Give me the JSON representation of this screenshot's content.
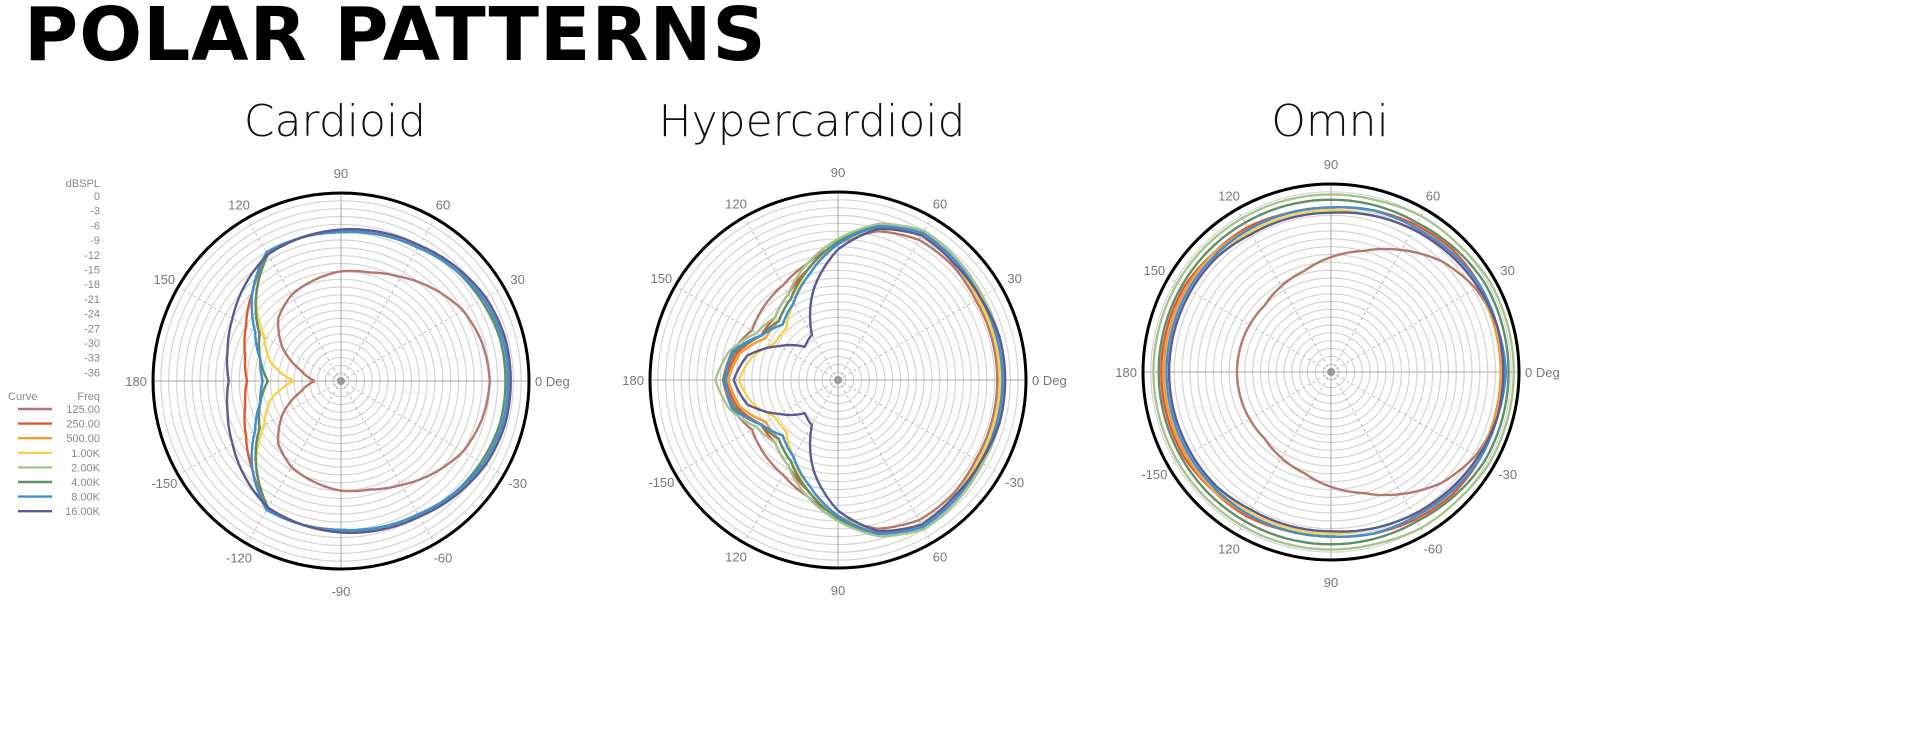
{
  "title": "POLAR PATTERNS",
  "chart_data": [
    {
      "type": "polar-line",
      "title": "Cardioid",
      "radial_unit": "dBSPL",
      "rlim": [
        -36,
        0
      ],
      "angles_deg": [
        0,
        15,
        30,
        45,
        60,
        75,
        90,
        105,
        120,
        135,
        150,
        165,
        180
      ],
      "symmetric": true,
      "angle_labels": [
        {
          "angle": 90,
          "text": "90"
        },
        {
          "angle": 120,
          "text": "120"
        },
        {
          "angle": 60,
          "text": "60"
        },
        {
          "angle": 150,
          "text": "150"
        },
        {
          "angle": 30,
          "text": "30"
        },
        {
          "angle": 180,
          "text": "180"
        },
        {
          "angle": 0,
          "text": "0 Deg"
        },
        {
          "angle": -150,
          "text": "-150"
        },
        {
          "angle": -30,
          "text": "-30"
        },
        {
          "angle": -120,
          "text": "-120"
        },
        {
          "angle": -90,
          "text": "-90"
        },
        {
          "angle": -60,
          "text": "-60"
        }
      ],
      "series": [
        {
          "name": "125.00",
          "values": [
            -7.5,
            -8,
            -9,
            -11,
            -13,
            -14.5,
            -15,
            -16,
            -17,
            -19,
            -23,
            -28,
            -31
          ]
        },
        {
          "name": "250.00",
          "values": [
            -4,
            -4,
            -4.5,
            -5.5,
            -6.5,
            -7,
            -7.5,
            -7.5,
            -8,
            -12,
            -15,
            -17,
            -18
          ]
        },
        {
          "name": "500.00",
          "values": [
            -3.5,
            -3.5,
            -4,
            -5,
            -6,
            -6.5,
            -7,
            -7.5,
            -8,
            -13,
            -18,
            -20,
            -21
          ]
        },
        {
          "name": "1.00K",
          "values": [
            -4,
            -4,
            -4.5,
            -5.5,
            -6.5,
            -7,
            -7.5,
            -7.5,
            -8,
            -13,
            -19,
            -22,
            -27
          ]
        },
        {
          "name": "2.00K",
          "values": [
            -4,
            -4,
            -4.5,
            -5.5,
            -6.5,
            -7,
            -7.5,
            -7.5,
            -8,
            -13,
            -18,
            -20,
            -22
          ]
        },
        {
          "name": "4.00K",
          "values": [
            -4.5,
            -4.5,
            -5,
            -5.5,
            -6.5,
            -7,
            -7.5,
            -7.5,
            -8,
            -13,
            -18,
            -20,
            -22
          ]
        },
        {
          "name": "8.00K",
          "values": [
            -4,
            -4,
            -4.5,
            -5.5,
            -6.5,
            -7,
            -7.5,
            -7.5,
            -7.5,
            -12,
            -17,
            -20,
            -21
          ]
        },
        {
          "name": "16.00K",
          "values": [
            -3.5,
            -3.5,
            -4,
            -5,
            -6,
            -6.5,
            -7,
            -7.5,
            -8,
            -10,
            -12,
            -13.5,
            -14.5
          ]
        }
      ]
    },
    {
      "type": "polar-line",
      "title": "Hypercardioid",
      "radial_unit": "dBSPL",
      "rlim": [
        -36,
        0
      ],
      "angles_deg": [
        0,
        15,
        30,
        45,
        60,
        75,
        90,
        105,
        120,
        135,
        150,
        165,
        180
      ],
      "symmetric": true,
      "angle_labels": [
        {
          "angle": 90,
          "text": "90"
        },
        {
          "angle": 120,
          "text": "120"
        },
        {
          "angle": 60,
          "text": "60"
        },
        {
          "angle": 150,
          "text": "150"
        },
        {
          "angle": 30,
          "text": "30"
        },
        {
          "angle": 180,
          "text": "180"
        },
        {
          "angle": 0,
          "text": "0 Deg"
        },
        {
          "angle": -150,
          "text": "-150"
        },
        {
          "angle": -30,
          "text": "-30"
        },
        {
          "angle": -120,
          "text": "120"
        },
        {
          "angle": -90,
          "text": "90"
        },
        {
          "angle": -60,
          "text": "60"
        }
      ],
      "series": [
        {
          "name": "125.00",
          "values": [
            -5.5,
            -5.5,
            -5.5,
            -5,
            -5,
            -6.5,
            -10,
            -13,
            -15,
            -16,
            -17,
            -15,
            -14
          ]
        },
        {
          "name": "250.00",
          "values": [
            -5,
            -5,
            -5,
            -4.5,
            -4,
            -6,
            -10,
            -14,
            -17,
            -19,
            -19,
            -16,
            -14.5
          ]
        },
        {
          "name": "500.00",
          "values": [
            -5,
            -5,
            -5,
            -4.5,
            -4,
            -6,
            -10,
            -14,
            -18,
            -20,
            -20,
            -16.5,
            -15
          ]
        },
        {
          "name": "1.00K",
          "values": [
            -5,
            -5,
            -5,
            -4.5,
            -4,
            -6,
            -10,
            -14,
            -19,
            -22,
            -22,
            -19,
            -17
          ]
        },
        {
          "name": "2.00K",
          "values": [
            -4,
            -4,
            -4,
            -3.5,
            -3,
            -5,
            -9,
            -13,
            -17,
            -19,
            -18,
            -14.5,
            -12.5
          ]
        },
        {
          "name": "4.00K",
          "values": [
            -4.5,
            -4.5,
            -4.5,
            -4,
            -3.5,
            -5.5,
            -9.5,
            -14,
            -18,
            -20,
            -19,
            -15.5,
            -14
          ]
        },
        {
          "name": "8.00K",
          "values": [
            -4.5,
            -4.5,
            -4.5,
            -4,
            -3.5,
            -5.5,
            -10,
            -15,
            -19,
            -21,
            -19,
            -15,
            -14.5
          ]
        },
        {
          "name": "16.00K",
          "values": [
            -4,
            -4,
            -4.5,
            -4.5,
            -4,
            -6,
            -11,
            -18,
            -26,
            -27,
            -23,
            -18,
            -16
          ]
        }
      ]
    },
    {
      "type": "polar-line",
      "title": "Omni",
      "radial_unit": "dBSPL",
      "rlim": [
        -36,
        0
      ],
      "angles_deg": [
        0,
        15,
        30,
        45,
        60,
        75,
        90,
        105,
        120,
        135,
        150,
        165,
        180
      ],
      "symmetric": true,
      "angle_labels": [
        {
          "angle": 90,
          "text": "90"
        },
        {
          "angle": 120,
          "text": "120"
        },
        {
          "angle": 60,
          "text": "60"
        },
        {
          "angle": 150,
          "text": "150"
        },
        {
          "angle": 30,
          "text": "30"
        },
        {
          "angle": 180,
          "text": "180"
        },
        {
          "angle": 0,
          "text": "0 Deg"
        },
        {
          "angle": -150,
          "text": "-150"
        },
        {
          "angle": -30,
          "text": "-30"
        },
        {
          "angle": -120,
          "text": "120"
        },
        {
          "angle": -90,
          "text": "90"
        },
        {
          "angle": -60,
          "text": "-60"
        }
      ],
      "series": [
        {
          "name": "125.00",
          "values": [
            -3,
            -3,
            -4,
            -6,
            -9,
            -12,
            -14,
            -16,
            -17,
            -18,
            -18,
            -18,
            -18
          ]
        },
        {
          "name": "250.00",
          "values": [
            -3,
            -3,
            -3,
            -3,
            -3.5,
            -4,
            -4.5,
            -4.5,
            -4,
            -4,
            -3.5,
            -3.5,
            -3.5
          ]
        },
        {
          "name": "500.00",
          "values": [
            -3.5,
            -3.5,
            -3.5,
            -4,
            -4,
            -4,
            -4.5,
            -4.5,
            -4.5,
            -4,
            -4,
            -4,
            -4
          ]
        },
        {
          "name": "1.00K",
          "values": [
            -2.5,
            -3,
            -3.5,
            -4,
            -4.5,
            -5,
            -5,
            -5,
            -5,
            -5,
            -5,
            -5,
            -5
          ]
        },
        {
          "name": "2.00K",
          "values": [
            -1,
            -1,
            -1,
            -1.5,
            -1.5,
            -2,
            -2,
            -2,
            -2,
            -2,
            -2,
            -2,
            -2
          ]
        },
        {
          "name": "4.00K",
          "values": [
            -2,
            -2,
            -2,
            -2.5,
            -3,
            -3,
            -3,
            -3,
            -3,
            -3,
            -3,
            -3,
            -3
          ]
        },
        {
          "name": "8.00K",
          "values": [
            -2.5,
            -3,
            -3,
            -3.5,
            -4,
            -4,
            -4.5,
            -4.5,
            -4.5,
            -4.5,
            -4.5,
            -4.5,
            -4.5
          ]
        },
        {
          "name": "16.00K",
          "values": [
            -3,
            -3,
            -3.5,
            -4,
            -4.5,
            -5,
            -5.5,
            -5.5,
            -5.5,
            -5,
            -5,
            -5,
            -5
          ]
        }
      ]
    }
  ],
  "legend": {
    "scale_title": "dBSPL",
    "scale_ticks": [
      "0",
      "-3",
      "-6",
      "-9",
      "-12",
      "-15",
      "-18",
      "-21",
      "-24",
      "-27",
      "-30",
      "-33",
      "-36"
    ],
    "curve_header": "Curve",
    "freq_header": "Freq",
    "entries": [
      {
        "freq": "125.00",
        "color": "#b5786a"
      },
      {
        "freq": "250.00",
        "color": "#e4572e"
      },
      {
        "freq": "500.00",
        "color": "#f39c33"
      },
      {
        "freq": "1.00K",
        "color": "#f9d14a"
      },
      {
        "freq": "2.00K",
        "color": "#a9c48a"
      },
      {
        "freq": "4.00K",
        "color": "#5f8f6a"
      },
      {
        "freq": "8.00K",
        "color": "#3d8fd6"
      },
      {
        "freq": "16.00K",
        "color": "#5b5c92"
      }
    ]
  }
}
